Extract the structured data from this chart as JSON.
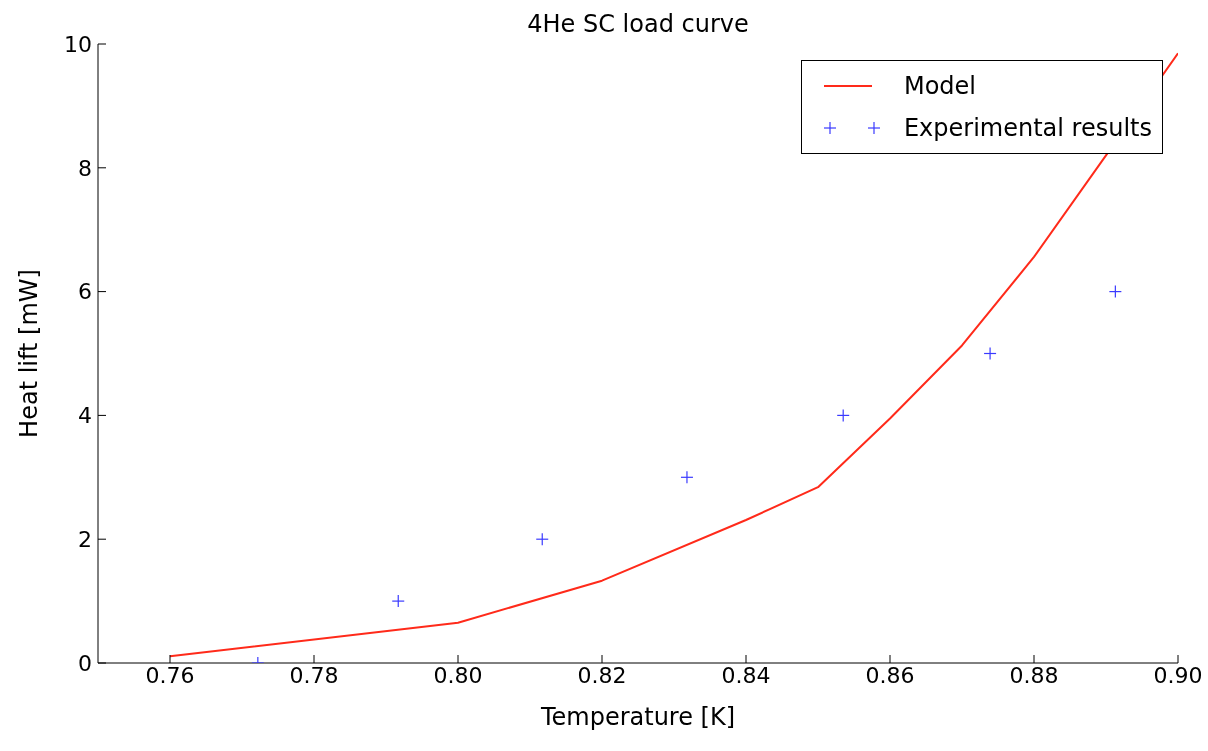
{
  "chart_data": {
    "type": "line",
    "title": "4He SC load curve",
    "xlabel": "Temperature [K]",
    "ylabel": "Heat lift [mW]",
    "series": [
      {
        "name": "Model",
        "color": "#ff2a1a",
        "marker": "none",
        "line_style": "solid",
        "x": [
          0.76,
          0.8,
          0.82,
          0.84,
          0.85,
          0.86,
          0.87,
          0.88,
          0.89,
          0.9
        ],
        "values": [
          0.11,
          0.65,
          1.33,
          2.31,
          2.84,
          3.95,
          5.13,
          6.56,
          8.2,
          9.85
        ]
      },
      {
        "name": "Experimental results",
        "type": "scatter",
        "color": "#3a3aff",
        "marker": "cross",
        "x": [
          0.7722,
          0.7917,
          0.8117,
          0.8318,
          0.8535,
          0.8739,
          0.8913
        ],
        "values": [
          0,
          1,
          2,
          3,
          4,
          5,
          6
        ]
      }
    ],
    "xlim": [
      0.75,
      0.9
    ],
    "xticks": [
      {
        "value": 0.76,
        "label": "0.76"
      },
      {
        "value": 0.78,
        "label": "0.78"
      },
      {
        "value": 0.8,
        "label": "0.80"
      },
      {
        "value": 0.82,
        "label": "0.82"
      },
      {
        "value": 0.84,
        "label": "0.84"
      },
      {
        "value": 0.86,
        "label": "0.86"
      },
      {
        "value": 0.88,
        "label": "0.88"
      },
      {
        "value": 0.9,
        "label": "0.90"
      }
    ],
    "ylim": [
      0,
      10
    ],
    "yticks": [
      0,
      2,
      4,
      6,
      8,
      10
    ],
    "grid": false,
    "legend": "top right"
  }
}
